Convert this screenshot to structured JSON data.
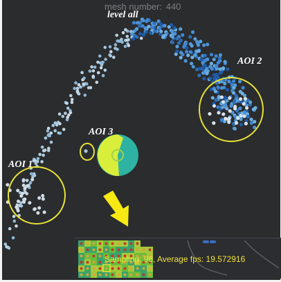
{
  "overlay": {
    "mesh_label": "mesh number:",
    "mesh_number": "440",
    "level_label": "level all"
  },
  "aois": [
    {
      "label": "AOI 1",
      "color": "#e8e337"
    },
    {
      "label": "AOI 2",
      "color": "#e8e337"
    },
    {
      "label": "AOI 3",
      "color": "#e8e337"
    }
  ],
  "inset": {
    "sampling_label": "Sampling: 96, Average fps: 19.572916"
  },
  "colors": {
    "background": "#2a2c2e",
    "annotation": "#e8e337",
    "arrow": "#f7ea12",
    "gaze_marker": "#d8ee3a",
    "gaze_ring": "#2eb3a3",
    "fps_text": "#f2e23a"
  },
  "icons": {
    "arrow": "down-arrow-icon"
  }
}
